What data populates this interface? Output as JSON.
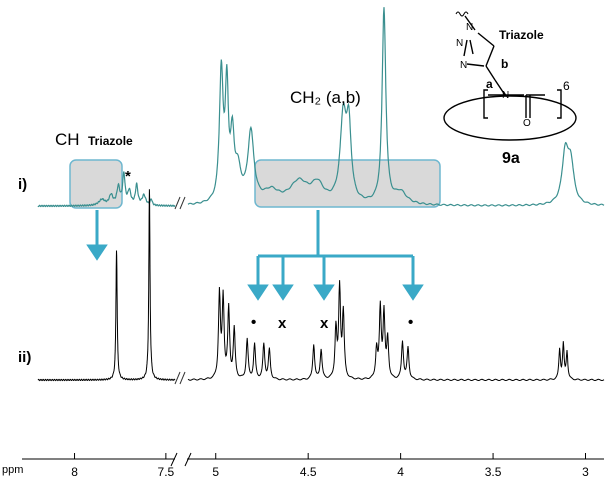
{
  "chart_data": {
    "type": "line",
    "title": "",
    "xlabel": "ppm",
    "ylabel": "",
    "x_reversed": true,
    "axis_break_after": 7.45,
    "axis_break_before": 5.15,
    "ticks": [
      "8",
      "7.5",
      "5",
      "4.5",
      "4",
      "3.5",
      "3"
    ],
    "tick_values": [
      8,
      7.5,
      5,
      4.5,
      4,
      3.5,
      3
    ],
    "colors": {
      "trace_i": "#3a8f8f",
      "trace_ii": "#000000",
      "arrow": "#3aa9c7",
      "box_fill": "#d9d9d9",
      "box_stroke": "#6fb7cf"
    },
    "series": [
      {
        "name": "i)",
        "peaks": [
          {
            "x": 7.85,
            "h": 6,
            "w": 0.02
          },
          {
            "x": 7.8,
            "h": 10,
            "w": 0.012
          },
          {
            "x": 7.76,
            "h": 18,
            "w": 0.01
          },
          {
            "x": 7.73,
            "h": 30,
            "w": 0.008
          },
          {
            "x": 7.7,
            "h": 14,
            "w": 0.01
          },
          {
            "x": 7.66,
            "h": 20,
            "w": 0.008
          },
          {
            "x": 7.62,
            "h": 10,
            "w": 0.012
          },
          {
            "x": 7.58,
            "h": 6,
            "w": 0.006
          },
          {
            "x": 4.97,
            "h": 130,
            "w": 0.012
          },
          {
            "x": 4.94,
            "h": 110,
            "w": 0.01
          },
          {
            "x": 4.91,
            "h": 60,
            "w": 0.012
          },
          {
            "x": 4.88,
            "h": 30,
            "w": 0.02
          },
          {
            "x": 4.81,
            "h": 70,
            "w": 0.02
          },
          {
            "x": 4.7,
            "h": 12,
            "w": 0.05
          },
          {
            "x": 4.55,
            "h": 22,
            "w": 0.06
          },
          {
            "x": 4.45,
            "h": 18,
            "w": 0.04
          },
          {
            "x": 4.31,
            "h": 85,
            "w": 0.02
          },
          {
            "x": 4.28,
            "h": 70,
            "w": 0.015
          },
          {
            "x": 4.09,
            "h": 195,
            "w": 0.012
          },
          {
            "x": 4.0,
            "h": 12,
            "w": 0.04
          },
          {
            "x": 3.11,
            "h": 50,
            "w": 0.02
          },
          {
            "x": 3.08,
            "h": 40,
            "w": 0.02
          }
        ]
      },
      {
        "name": "ii)",
        "peaks": [
          {
            "x": 7.77,
            "h": 130,
            "w": 0.004
          },
          {
            "x": 7.59,
            "h": 190,
            "w": 0.004
          },
          {
            "x": 4.98,
            "h": 85,
            "w": 0.006
          },
          {
            "x": 4.96,
            "h": 80,
            "w": 0.006
          },
          {
            "x": 4.93,
            "h": 70,
            "w": 0.006
          },
          {
            "x": 4.9,
            "h": 50,
            "w": 0.006
          },
          {
            "x": 4.83,
            "h": 40,
            "w": 0.006
          },
          {
            "x": 4.79,
            "h": 35,
            "w": 0.006
          },
          {
            "x": 4.74,
            "h": 35,
            "w": 0.006
          },
          {
            "x": 4.71,
            "h": 30,
            "w": 0.006
          },
          {
            "x": 4.47,
            "h": 35,
            "w": 0.006
          },
          {
            "x": 4.43,
            "h": 30,
            "w": 0.006
          },
          {
            "x": 4.35,
            "h": 50,
            "w": 0.006
          },
          {
            "x": 4.33,
            "h": 90,
            "w": 0.006
          },
          {
            "x": 4.31,
            "h": 65,
            "w": 0.006
          },
          {
            "x": 4.13,
            "h": 30,
            "w": 0.006
          },
          {
            "x": 4.11,
            "h": 70,
            "w": 0.006
          },
          {
            "x": 4.09,
            "h": 65,
            "w": 0.006
          },
          {
            "x": 4.07,
            "h": 40,
            "w": 0.006
          },
          {
            "x": 3.99,
            "h": 38,
            "w": 0.006
          },
          {
            "x": 3.96,
            "h": 32,
            "w": 0.006
          },
          {
            "x": 3.14,
            "h": 30,
            "w": 0.005
          },
          {
            "x": 3.12,
            "h": 35,
            "w": 0.005
          },
          {
            "x": 3.1,
            "h": 28,
            "w": 0.005
          }
        ]
      }
    ],
    "annotations": [
      {
        "text": "CH",
        "sub": "Triazole"
      },
      {
        "text": "CH₂ (a,b)"
      },
      {
        "text": "*"
      },
      {
        "text": "•"
      },
      {
        "text": "x"
      },
      {
        "text": "x"
      },
      {
        "text": "•"
      }
    ],
    "structure": {
      "title": "Triazole",
      "compound": "9a",
      "atoms": [
        "N",
        "N",
        "N",
        "N",
        "O"
      ],
      "labels": [
        "a",
        "b",
        "6"
      ]
    }
  }
}
